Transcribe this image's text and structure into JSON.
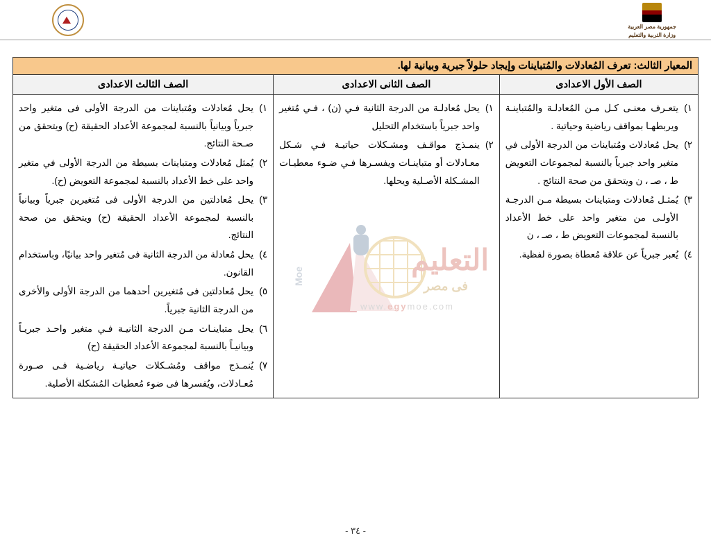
{
  "header": {
    "gov_line1": "جمهورية مصر العربية",
    "gov_line2": "وزارة التربية والتعليم"
  },
  "criteria_title": "المعيار الثالث: تعرف المُعادلات والمُتباينات وإيجاد حلولاً جبرية وبيانية لها.",
  "columns": {
    "col1": "الصف الأول الاعدادى",
    "col2": "الصف الثانى الاعدادى",
    "col3": "الصف الثالث الاعدادى"
  },
  "col1_items": [
    "يتعـرف معنـى كـل مـن المُعادلـة والمُتباينـة ويربطهـا بمواقف رياضية وحياتية .",
    "يحل مُعادلات ومُتباينات من الدرجة الأولى في متغير واحد جبرياً بالنسبة لمجموعات التعويض ط ،   صـ ،   ﻥ ويتحقق من صحة النتائج .",
    "يُمثـل مُعادلات ومتباينات بسيطة مـن الدرجـة الأولـى من متغير واحد على خط الأعداد بالنسبة لمجموعات التعويض ط ،    صـ ،    ﻥ",
    "يُعبر جبرياً عن علاقة مُعطاة بصورة لفظية."
  ],
  "col2_items": [
    "يحل مُعادلـة من الدرجة الثانية فـي (ﻥ) ، فـي مُتغير واحد جبرياً باستخدام التحليل",
    "ينمـذج مواقـف ومشـكلات حياتيـة فـي شـكل معـادلات أو متباينـات ويفسـرها فـي ضـوء معطيـات المشـكلة الأصـلية ويحلها."
  ],
  "col3_items": [
    "يحل مُعادلات ومُتباينات من الدرجة الأولى فى متغير واحد جبرياً وبيانياً بالنسبة لمجموعة الأعداد الحقيقة (ح) ويتحقق من صـحة النتائج.",
    "يُمثل مُعادلات ومتباينات بسيطة من الدرجة الأولى في متغير واحد على خط الأعداد بالنسبة لمجموعة التعويض (ح).",
    "يحل مُعادلتين من الدرجة الأولى فى مُتغيرين جبرياً وبيانياً بالنسبة لمجموعة الأعداد الحقيقة (ح) ويتحقق من صحة النتائج.",
    "يحل مُعادلة من الدرجة الثانية فى مُتغير واحد بيانيًا، وباستخدام القانون.",
    "يحل مُعادلتين فى مُتغيرين أحدهما من الدرجة الأولى والأخرى من الدرجة الثانية جبرياً.",
    "يحل متباينـات مـن الدرجة الثانيـة فـي متغير واحـد جبريـاً وبيانيـاً بالنسبة لمجموعة الأعداد الحقيقة (ح)",
    "يُنمـذج مواقف ومُشـكلات حياتيـة رياضـية فـى صـورة مُعـادلات، ويُفسرها فى ضوء مُعطيات المُشكلة الأصلية."
  ],
  "arabic_ordinals": [
    "١)",
    "٢)",
    "٣)",
    "٤)",
    "٥)",
    "٦)",
    "٧)"
  ],
  "watermark": {
    "brand": "التعليم",
    "sub": "فى مصر",
    "url_pre": "www.",
    "url_mid": "egy",
    "url_post": "moe.com",
    "side": "Moe"
  },
  "page_number": "- ٣٤ -"
}
